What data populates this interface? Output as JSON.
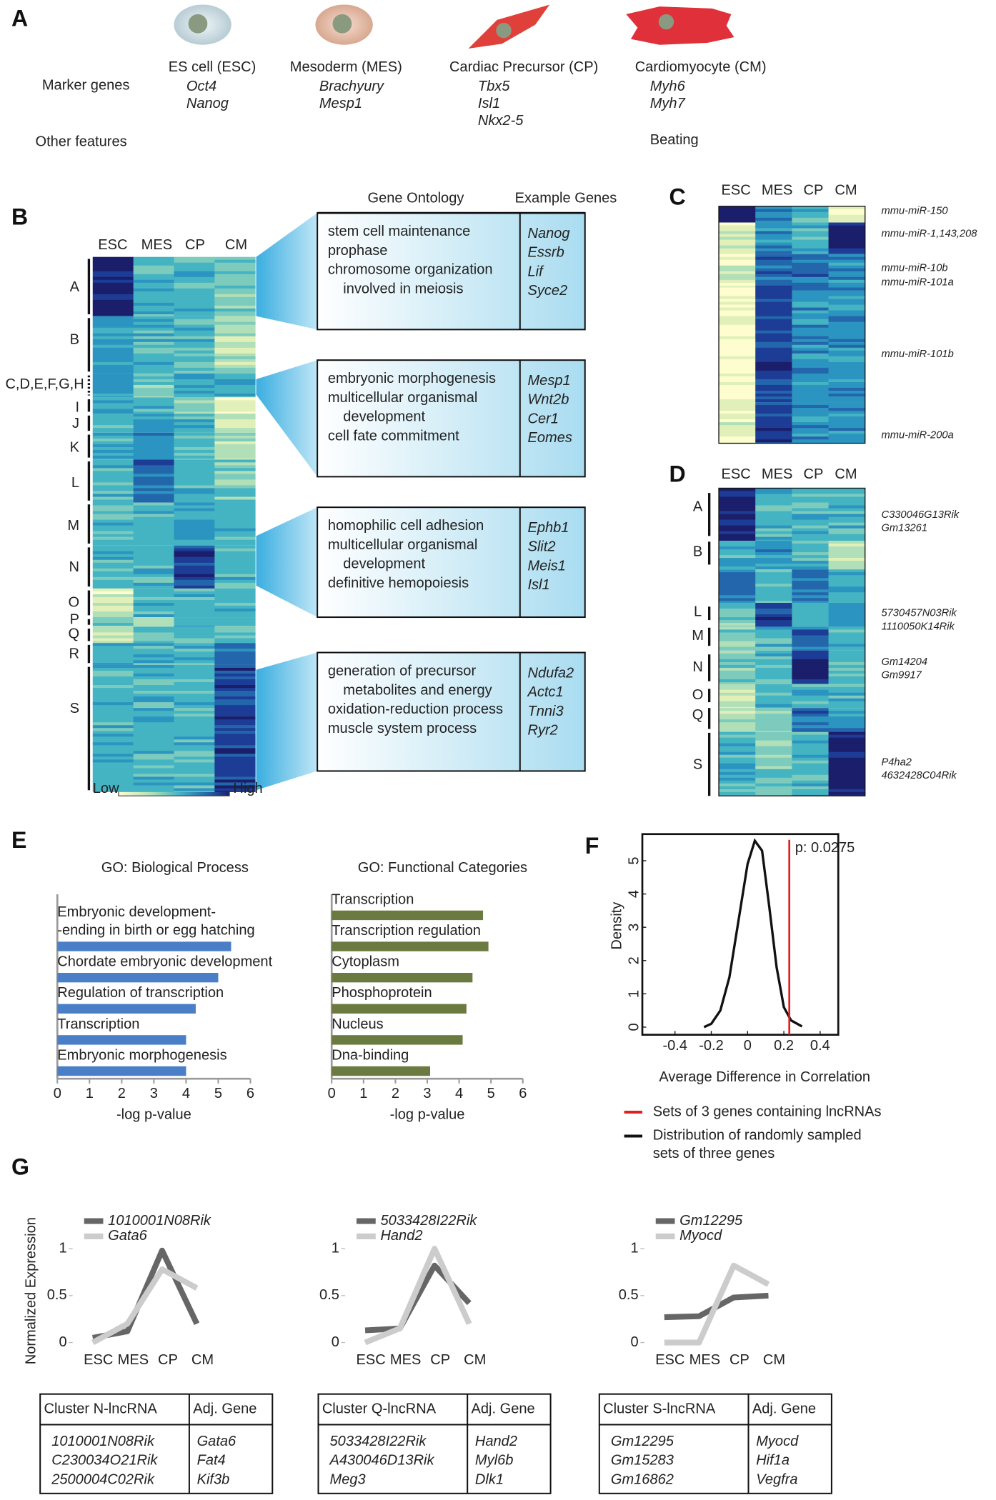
{
  "panel_labels": [
    "A",
    "B",
    "C",
    "D",
    "E",
    "F",
    "G"
  ],
  "panel_a": {
    "row_labels": [
      "Marker genes",
      "Other features"
    ],
    "cells": [
      {
        "name": "ES cell (ESC)",
        "markers": [
          "Oct4",
          "Nanog"
        ]
      },
      {
        "name": "Mesoderm (MES)",
        "markers": [
          "Brachyury",
          "Mesp1"
        ]
      },
      {
        "name": "Cardiac Precursor (CP)",
        "markers": [
          "Tbx5",
          "Isl1",
          "Nkx2-5"
        ]
      },
      {
        "name": "Cardiomyocyte (CM)",
        "markers": [
          "Myh6",
          "Myh7"
        ]
      }
    ],
    "other_feature": "Beating"
  },
  "panel_b": {
    "columns": [
      "ESC",
      "MES",
      "CP",
      "CM"
    ],
    "clusters": [
      "A",
      "B",
      "C,D,E,F,G,H",
      "I",
      "J",
      "K",
      "L",
      "M",
      "N",
      "O",
      "P",
      "Q",
      "R",
      "S"
    ],
    "legend": {
      "low": "Low",
      "high": "High"
    },
    "go_header": "Gene Ontology",
    "genes_header": "Example Genes",
    "boxes": [
      {
        "terms": [
          "stem cell maintenance",
          "prophase",
          "chromosome organization",
          "involved in meiosis"
        ],
        "genes": [
          "Nanog",
          "Essrb",
          "Lif",
          "Syce2"
        ]
      },
      {
        "terms": [
          "embryonic morphogenesis",
          "multicellular organismal",
          "development",
          "cell fate commitment"
        ],
        "genes": [
          "Mesp1",
          "Wnt2b",
          "Cer1",
          "Eomes"
        ]
      },
      {
        "terms": [
          "homophilic cell adhesion",
          "multicellular organismal",
          "development",
          "definitive hemopoiesis"
        ],
        "genes": [
          "Ephb1",
          "Slit2",
          "Meis1",
          "Isl1"
        ]
      },
      {
        "terms": [
          "generation of precursor",
          "metabolites and energy",
          "oxidation-reduction process",
          "muscle system process"
        ],
        "genes": [
          "Ndufa2",
          "Actc1",
          "Tnni3",
          "Ryr2"
        ]
      }
    ]
  },
  "panel_c": {
    "columns": [
      "ESC",
      "MES",
      "CP",
      "CM"
    ],
    "labels": [
      "mmu-miR-150",
      "mmu-miR-1,143,208",
      "mmu-miR-10b",
      "mmu-miR-101a",
      "mmu-miR-101b",
      "mmu-miR-200a"
    ]
  },
  "panel_d": {
    "columns": [
      "ESC",
      "MES",
      "CP",
      "CM"
    ],
    "clusters": [
      "A",
      "B",
      "L",
      "M",
      "N",
      "O",
      "Q",
      "S"
    ],
    "labels": [
      "C330046G13Rik",
      "Gm13261",
      "5730457N03Rik",
      "1110050K14Rik",
      "Gm14204",
      "Gm9917",
      "P4ha2",
      "4632428C04Rik"
    ]
  },
  "chart_data": [
    {
      "type": "bar",
      "orientation": "horizontal",
      "title": "GO: Biological Process",
      "xlabel": "-log p-value",
      "color": "#4a7fc8",
      "categories": [
        "Embryonic development-\n-ending in birth or egg hatching",
        "Chordate embryonic development",
        "Regulation of transcription",
        "Transcription",
        "Embryonic morphogenesis"
      ],
      "values": [
        5.4,
        5.0,
        4.3,
        4.0,
        4.0
      ],
      "xlim": [
        0,
        6
      ],
      "xticks": [
        0,
        1,
        2,
        3,
        4,
        5,
        6
      ]
    },
    {
      "type": "bar",
      "orientation": "horizontal",
      "title": "GO:  Functional Categories",
      "xlabel": "-log p-value",
      "color": "#6b7a40",
      "categories": [
        "Transcription",
        "Transcription regulation",
        "Cytoplasm",
        "Phosphoprotein",
        "Nucleus",
        "Dna-binding"
      ],
      "values": [
        4.75,
        4.92,
        4.42,
        4.23,
        4.11,
        3.09
      ],
      "xlim": [
        0,
        6
      ],
      "xticks": [
        0,
        1,
        2,
        3,
        4,
        5,
        6
      ]
    },
    {
      "type": "density",
      "xlabel": "Average Difference in Correlation",
      "ylabel": "Density",
      "series": [
        {
          "name": "Distribution of randomly sampled\nsets of three genes",
          "color": "#111111",
          "x": [
            -0.24,
            -0.2,
            -0.15,
            -0.1,
            -0.05,
            0,
            0.04,
            0.08,
            0.12,
            0.16,
            0.2,
            0.24,
            0.3
          ],
          "values": [
            0,
            0.1,
            0.5,
            1.5,
            3.2,
            4.9,
            5.6,
            5.3,
            3.6,
            1.8,
            0.6,
            0.2,
            0.02
          ]
        }
      ],
      "reference_line": {
        "name": "Sets of 3 genes containing lncRNAs",
        "value": 0.23,
        "color": "#e02020",
        "label": "p: 0.0275"
      },
      "xlim": [
        -0.58,
        0.5
      ],
      "ylim": [
        -0.23,
        5.8
      ],
      "xticks": [
        -0.4,
        -0.2,
        0,
        0.2,
        0.4
      ],
      "yticks": [
        0,
        1,
        2,
        3,
        4,
        5
      ]
    },
    {
      "type": "line",
      "ylabel": "Normalized Expression",
      "categories": [
        "ESC",
        "MES",
        "CP",
        "CM"
      ],
      "series": [
        {
          "name": "1010001N08Rik",
          "color": "#666666",
          "values": [
            0.05,
            0.12,
            0.98,
            0.2
          ]
        },
        {
          "name": "Gata6",
          "color": "#cccccc",
          "values": [
            0,
            0.2,
            0.78,
            0.58
          ]
        }
      ],
      "ylim": [
        -0.05,
        1.1
      ],
      "yticks": [
        0,
        0.5,
        1
      ]
    },
    {
      "type": "line",
      "categories": [
        "ESC",
        "MES",
        "CP",
        "CM"
      ],
      "series": [
        {
          "name": "5033428I22Rik",
          "color": "#666666",
          "values": [
            0.13,
            0.15,
            0.82,
            0.42
          ]
        },
        {
          "name": "Hand2",
          "color": "#cccccc",
          "values": [
            0,
            0.15,
            1.0,
            0.2
          ]
        }
      ],
      "ylim": [
        -0.05,
        1.1
      ],
      "yticks": [
        0,
        0.5,
        1
      ]
    },
    {
      "type": "line",
      "categories": [
        "ESC",
        "MES",
        "CP",
        "CM"
      ],
      "series": [
        {
          "name": "Gm12295",
          "color": "#666666",
          "values": [
            0.27,
            0.28,
            0.48,
            0.5
          ]
        },
        {
          "name": "Myocd",
          "color": "#cccccc",
          "values": [
            0,
            0,
            0.82,
            0.62
          ]
        }
      ],
      "ylim": [
        -0.05,
        1.1
      ],
      "yticks": [
        0,
        0.5,
        1
      ]
    }
  ],
  "tables": [
    {
      "headers": [
        "Cluster N-lncRNA",
        "Adj. Gene"
      ],
      "rows": [
        [
          "1010001N08Rik",
          "Gata6"
        ],
        [
          "C230034O21Rik",
          "Fat4"
        ],
        [
          "2500004C02Rik",
          "Kif3b"
        ]
      ]
    },
    {
      "headers": [
        "Cluster Q-lncRNA",
        "Adj. Gene"
      ],
      "rows": [
        [
          "5033428I22Rik",
          "Hand2"
        ],
        [
          "A430046D13Rik",
          "Myl6b"
        ],
        [
          "Meg3",
          "Dlk1"
        ]
      ]
    },
    {
      "headers": [
        "Cluster S-lncRNA",
        "Adj. Gene"
      ],
      "rows": [
        [
          "Gm12295",
          "Myocd"
        ],
        [
          "Gm15283",
          "Hif1a"
        ],
        [
          "Gm16862",
          "Vegfra"
        ]
      ]
    }
  ]
}
